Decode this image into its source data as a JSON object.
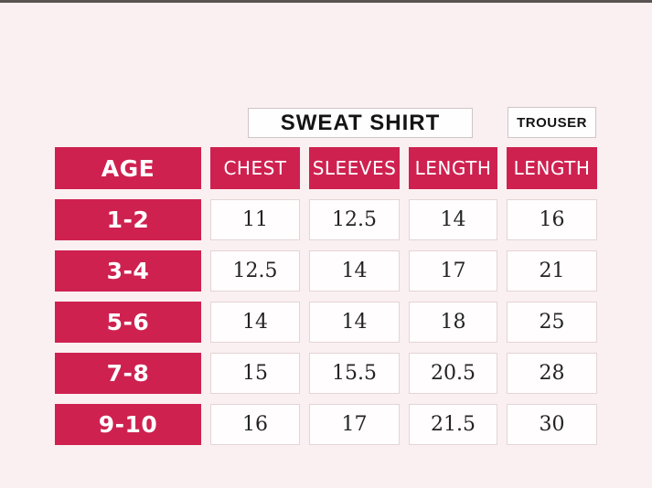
{
  "colors": {
    "accent": "#ce2150",
    "background": "#f9edee",
    "cell_background": "#fffdfd",
    "cell_border": "#e4d4d6",
    "header_text": "#ffffff",
    "value_text": "#232323"
  },
  "chart_data": {
    "type": "table",
    "column_groups": [
      {
        "label": "SWEAT SHIRT",
        "span": [
          "CHEST",
          "SLEEVES",
          "LENGTH"
        ]
      },
      {
        "label": "TROUSER",
        "span": [
          "LENGTH"
        ]
      }
    ],
    "columns": [
      "AGE",
      "CHEST",
      "SLEEVES",
      "LENGTH",
      "LENGTH"
    ],
    "rows": [
      {
        "age": "1-2",
        "chest": "11",
        "sleeves": "12.5",
        "length": "14",
        "trouser_length": "16"
      },
      {
        "age": "3-4",
        "chest": "12.5",
        "sleeves": "14",
        "length": "17",
        "trouser_length": "21"
      },
      {
        "age": "5-6",
        "chest": "14",
        "sleeves": "14",
        "length": "18",
        "trouser_length": "25"
      },
      {
        "age": "7-8",
        "chest": "15",
        "sleeves": "15.5",
        "length": "20.5",
        "trouser_length": "28"
      },
      {
        "age": "9-10",
        "chest": "16",
        "sleeves": "17",
        "length": "21.5",
        "trouser_length": "30"
      }
    ]
  }
}
